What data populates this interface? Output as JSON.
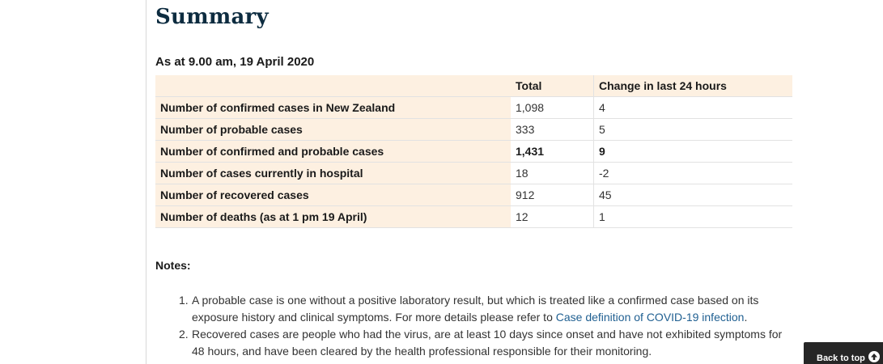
{
  "page": {
    "title": "Summary",
    "as_at": "As at 9.00 am, 19 April 2020"
  },
  "table": {
    "headers": [
      "",
      "Total",
      "Change in last 24 hours"
    ],
    "rows": [
      {
        "label": "Number of confirmed cases in New Zealand",
        "total": "1,098",
        "change": "4"
      },
      {
        "label": "Number of probable cases",
        "total": "333",
        "change": "5"
      },
      {
        "label": "Number of confirmed and probable cases",
        "total": "1,431",
        "change": "9"
      },
      {
        "label": "Number of cases currently in hospital",
        "total": "18",
        "change": "-2"
      },
      {
        "label": "Number of recovered cases",
        "total": "912",
        "change": "45"
      },
      {
        "label": "Number of deaths (as at 1 pm 19 April)",
        "total": "12",
        "change": "1"
      }
    ]
  },
  "notes": {
    "heading": "Notes:",
    "items": [
      {
        "number": "1.",
        "text": "A probable case is one without a positive laboratory result, but which is treated like a confirmed case based on its exposure history and clinical symptoms. For more details please refer to ",
        "link": "Case definition of COVID-19 infection",
        "suffix": "."
      },
      {
        "number": "2.",
        "text": "Recovered cases are people who had the virus, are at least 10 days since onset and have not exhibited symptoms for 48 hours, and have been cleared by the health professional responsible for their monitoring.",
        "link": "",
        "suffix": ""
      }
    ]
  },
  "back_to_top": {
    "label": "Back to top",
    "icon": "arrow-up-circle-icon"
  },
  "colors": {
    "title": "#0d2c40",
    "table_header_bg": "#fdf0e1",
    "link": "#1f5f91",
    "back_to_top_bg": "#262626"
  }
}
